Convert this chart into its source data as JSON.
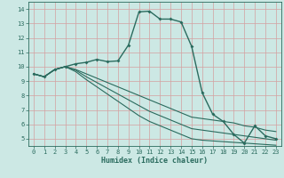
{
  "xlabel": "Humidex (Indice chaleur)",
  "bg_color": "#cce8e4",
  "grid_color": "#afd4ce",
  "line_color": "#2a6b5e",
  "xlim": [
    -0.5,
    23.5
  ],
  "ylim": [
    4.5,
    14.5
  ],
  "xticks": [
    0,
    1,
    2,
    3,
    4,
    5,
    6,
    7,
    8,
    9,
    10,
    11,
    12,
    13,
    14,
    15,
    16,
    17,
    18,
    19,
    20,
    21,
    22,
    23
  ],
  "yticks": [
    5,
    6,
    7,
    8,
    9,
    10,
    11,
    12,
    13,
    14
  ],
  "series1_x": [
    0,
    1,
    2,
    3,
    4,
    5,
    6,
    7,
    8,
    9,
    10,
    11,
    12,
    13,
    14,
    15,
    16,
    17,
    18,
    19,
    20,
    21,
    22,
    23
  ],
  "series1_y": [
    9.5,
    9.3,
    9.8,
    10.0,
    10.2,
    10.3,
    10.5,
    10.35,
    10.4,
    11.5,
    13.8,
    13.85,
    13.3,
    13.3,
    13.1,
    11.4,
    8.2,
    6.7,
    6.2,
    5.3,
    4.7,
    5.9,
    5.2,
    5.0
  ],
  "series2_x": [
    0,
    1,
    2,
    3,
    4,
    5,
    6,
    7,
    8,
    9,
    10,
    11,
    12,
    13,
    14,
    15,
    16,
    17,
    18,
    19,
    20,
    21,
    22,
    23
  ],
  "series2_y": [
    9.5,
    9.3,
    9.8,
    10.0,
    9.8,
    9.5,
    9.2,
    8.9,
    8.6,
    8.3,
    8.0,
    7.7,
    7.4,
    7.1,
    6.8,
    6.5,
    6.4,
    6.3,
    6.2,
    6.1,
    5.9,
    5.8,
    5.6,
    5.5
  ],
  "series3_x": [
    0,
    1,
    2,
    3,
    4,
    5,
    6,
    7,
    8,
    9,
    10,
    11,
    12,
    13,
    14,
    15,
    16,
    17,
    18,
    19,
    20,
    21,
    22,
    23
  ],
  "series3_y": [
    9.5,
    9.3,
    9.8,
    10.0,
    9.75,
    9.3,
    8.9,
    8.5,
    8.1,
    7.7,
    7.3,
    6.9,
    6.6,
    6.3,
    6.0,
    5.7,
    5.6,
    5.5,
    5.4,
    5.3,
    5.2,
    5.1,
    5.0,
    4.9
  ],
  "series4_x": [
    0,
    1,
    2,
    3,
    4,
    5,
    6,
    7,
    8,
    9,
    10,
    11,
    12,
    13,
    14,
    15,
    16,
    17,
    18,
    19,
    20,
    21,
    22,
    23
  ],
  "series4_y": [
    9.5,
    9.3,
    9.8,
    10.0,
    9.65,
    9.1,
    8.6,
    8.1,
    7.6,
    7.1,
    6.6,
    6.2,
    5.9,
    5.6,
    5.3,
    5.0,
    4.9,
    4.85,
    4.8,
    4.75,
    4.7,
    4.65,
    4.6,
    4.55
  ],
  "tick_fontsize": 5.0,
  "xlabel_fontsize": 6.0,
  "marker_size": 2.0,
  "linewidth_main": 1.0,
  "linewidth_sub": 0.8
}
